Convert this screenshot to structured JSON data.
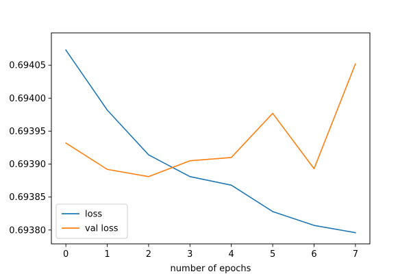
{
  "chart_data": {
    "type": "line",
    "title": "",
    "xlabel": "number of epochs",
    "ylabel": "",
    "x": [
      0,
      1,
      2,
      3,
      4,
      5,
      6,
      7
    ],
    "xticks": [
      0,
      1,
      2,
      3,
      4,
      5,
      6,
      7
    ],
    "xtick_labels": [
      "0",
      "1",
      "2",
      "3",
      "4",
      "5",
      "6",
      "7"
    ],
    "xlim": [
      -0.35,
      7.35
    ],
    "ylim": [
      0.693779,
      0.694099
    ],
    "yticks": [
      0.6938,
      0.69385,
      0.6939,
      0.69395,
      0.694,
      0.69405
    ],
    "ytick_labels": [
      "0.69380",
      "0.69385",
      "0.69390",
      "0.69395",
      "0.69400",
      "0.69405"
    ],
    "grid": false,
    "legend_position": "lower-left",
    "series": [
      {
        "name": "loss",
        "color": "#1f77b4",
        "values": [
          0.694073,
          0.693982,
          0.693914,
          0.693881,
          0.693868,
          0.693828,
          0.693807,
          0.693796
        ]
      },
      {
        "name": "val loss",
        "color": "#ff7f0e",
        "values": [
          0.693932,
          0.693892,
          0.693881,
          0.693905,
          0.69391,
          0.693977,
          0.693893,
          0.694052
        ]
      }
    ]
  }
}
